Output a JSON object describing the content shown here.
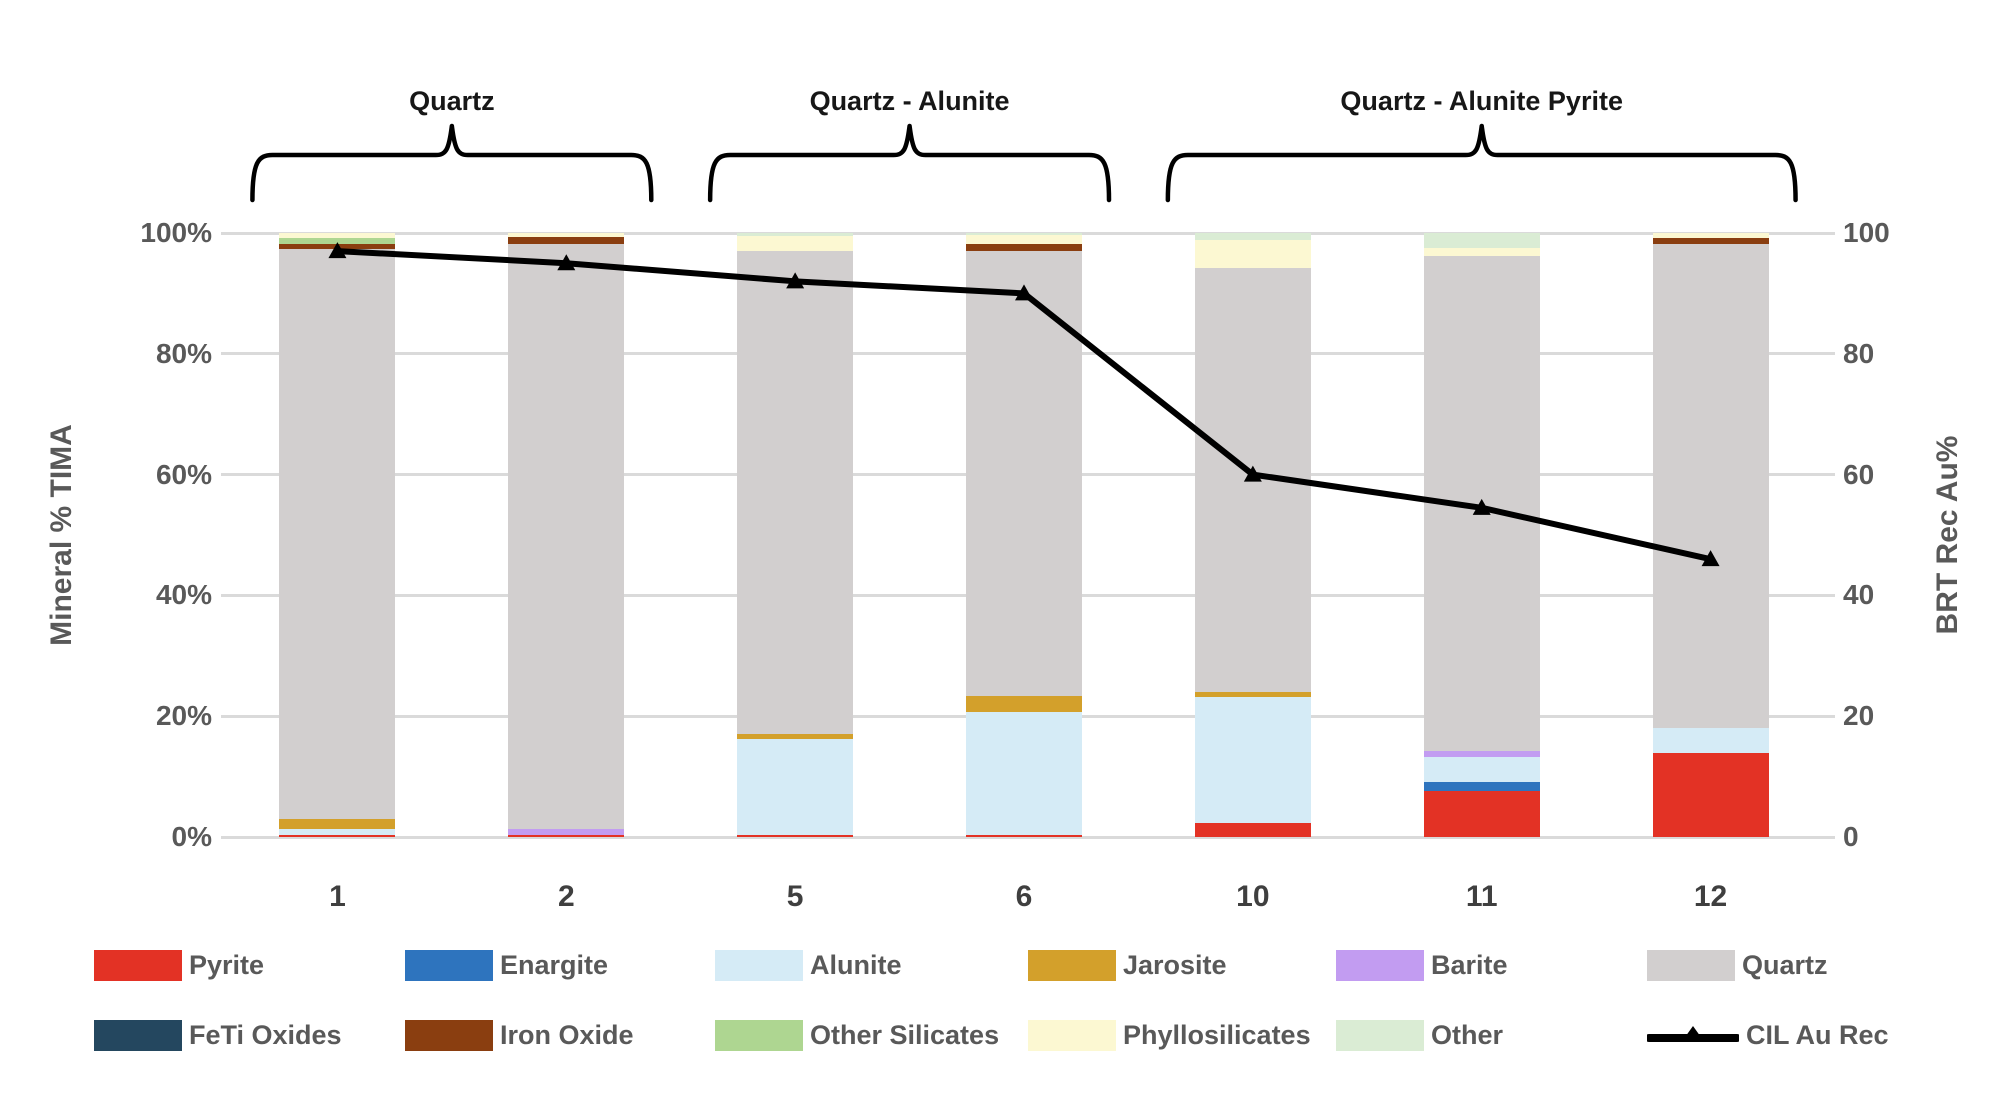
{
  "chart": {
    "left_axis_title": "Mineral % TIMA",
    "right_axis_title": "BRT Rec Au%"
  },
  "chart_data": {
    "type": "bar",
    "subtype": "stacked-100pct-bars-with-line-overlay",
    "title": "",
    "categories": [
      "1",
      "2",
      "5",
      "6",
      "10",
      "11",
      "12"
    ],
    "series": [
      {
        "name": "Pyrite",
        "color": "#e33225",
        "values": [
          0.4,
          0.3,
          0.3,
          0.3,
          2.3,
          7.6,
          13.9
        ]
      },
      {
        "name": "Enargite",
        "color": "#2e74be",
        "values": [
          0,
          0,
          0,
          0,
          0,
          1.5,
          0
        ]
      },
      {
        "name": "Alunite",
        "color": "#d5ebf6",
        "values": [
          1.0,
          0,
          15.9,
          20.4,
          20.9,
          4.2,
          4.2
        ]
      },
      {
        "name": "Jarosite",
        "color": "#d3a02b",
        "values": [
          1.6,
          0,
          0.8,
          2.7,
          0.8,
          0,
          0
        ]
      },
      {
        "name": "Barite",
        "color": "#c29cf1",
        "values": [
          0,
          1.0,
          0,
          0,
          0,
          0.9,
          0
        ]
      },
      {
        "name": "Quartz",
        "color": "#d2cfcf",
        "values": [
          94.4,
          96.9,
          80.1,
          73.7,
          70.2,
          82.0,
          80.1
        ]
      },
      {
        "name": "FeTi Oxides",
        "color": "#24475f",
        "values": [
          0,
          0,
          0,
          0,
          0,
          0,
          0
        ]
      },
      {
        "name": "Iron Oxide",
        "color": "#8a3e10",
        "values": [
          0.8,
          1.1,
          0,
          1.1,
          0,
          0,
          0.9
        ]
      },
      {
        "name": "Other Silicates",
        "color": "#aed691",
        "values": [
          1.0,
          0,
          0,
          0,
          0,
          0,
          0
        ]
      },
      {
        "name": "Phyllosilicates",
        "color": "#fcf8d2",
        "values": [
          0.8,
          0.7,
          2.4,
          1.4,
          4.6,
          1.4,
          0.9
        ]
      },
      {
        "name": "Other",
        "color": "#daecd4",
        "values": [
          0,
          0,
          0.5,
          0.4,
          1.2,
          2.4,
          0
        ]
      }
    ],
    "line_series": {
      "name": "CIL Au Rec",
      "color": "#000000",
      "values": [
        97,
        95,
        92,
        90,
        60,
        54.5,
        46
      ]
    },
    "left_axis": {
      "label": "Mineral % TIMA",
      "range": [
        0,
        100
      ],
      "ticks": [
        "0%",
        "20%",
        "40%",
        "60%",
        "80%",
        "100%"
      ],
      "tick_values": [
        0,
        20,
        40,
        60,
        80,
        100
      ]
    },
    "right_axis": {
      "label": "BRT Rec Au%",
      "range": [
        0,
        100
      ],
      "ticks": [
        "0",
        "20",
        "40",
        "60",
        "80",
        "100"
      ],
      "tick_values": [
        0,
        20,
        40,
        60,
        80,
        100
      ]
    },
    "grid": true,
    "legend_position": "bottom",
    "group_annotations": [
      {
        "label": "Quartz",
        "from": 0,
        "to": 1
      },
      {
        "label": "Quartz - Alunite",
        "from": 2,
        "to": 3
      },
      {
        "label": "Quartz - Alunite Pyrite",
        "from": 4,
        "to": 6
      }
    ],
    "legend_rows": [
      [
        {
          "label": "Pyrite",
          "color": "#e33225",
          "kind": "swatch"
        },
        {
          "label": "Enargite",
          "color": "#2e74be",
          "kind": "swatch"
        },
        {
          "label": "Alunite",
          "color": "#d5ebf6",
          "kind": "swatch"
        },
        {
          "label": "Jarosite",
          "color": "#d3a02b",
          "kind": "swatch"
        },
        {
          "label": "Barite",
          "color": "#c29cf1",
          "kind": "swatch"
        },
        {
          "label": "Quartz",
          "color": "#d2cfcf",
          "kind": "swatch"
        }
      ],
      [
        {
          "label": "FeTi Oxides",
          "color": "#24475f",
          "kind": "swatch"
        },
        {
          "label": "Iron Oxide",
          "color": "#8a3e10",
          "kind": "swatch"
        },
        {
          "label": "Other Silicates",
          "color": "#aed691",
          "kind": "swatch"
        },
        {
          "label": "Phyllosilicates",
          "color": "#fcf8d2",
          "kind": "swatch"
        },
        {
          "label": "Other",
          "color": "#daecd4",
          "kind": "swatch"
        },
        {
          "label": "CIL Au Rec",
          "color": "#000000",
          "kind": "line"
        }
      ]
    ]
  }
}
